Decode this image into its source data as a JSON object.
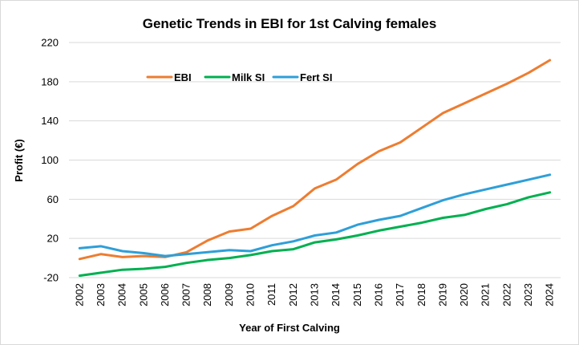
{
  "chart_data": {
    "type": "line",
    "title": "Genetic Trends in EBI for 1st Calving females",
    "xlabel": "Year of First Calving",
    "ylabel": "Profit (€)",
    "ylim": [
      -20,
      220
    ],
    "yticks": [
      -20,
      20,
      60,
      100,
      140,
      180,
      220
    ],
    "grid": true,
    "legend_position": "top-left",
    "categories": [
      "2002",
      "2003",
      "2004",
      "2005",
      "2006",
      "2007",
      "2008",
      "2009",
      "2010",
      "2011",
      "2012",
      "2013",
      "2014",
      "2015",
      "2016",
      "2017",
      "2018",
      "2019",
      "2020",
      "2021",
      "2022",
      "2023",
      "2024"
    ],
    "series": [
      {
        "name": "EBI",
        "color": "#ED7D31",
        "values": [
          -1,
          4,
          1,
          2,
          1,
          6,
          18,
          27,
          30,
          43,
          53,
          71,
          80,
          96,
          109,
          118,
          133,
          148,
          158,
          168,
          178,
          189,
          202
        ]
      },
      {
        "name": "Milk SI",
        "color": "#00B050",
        "values": [
          -18,
          -15,
          -12,
          -11,
          -9,
          -5,
          -2,
          0,
          3,
          7,
          9,
          16,
          19,
          23,
          28,
          32,
          36,
          41,
          44,
          50,
          55,
          62,
          67
        ]
      },
      {
        "name": "Fert SI",
        "color": "#2E9FD8",
        "values": [
          10,
          12,
          7,
          5,
          2,
          4,
          6,
          8,
          7,
          13,
          17,
          23,
          26,
          34,
          39,
          43,
          51,
          59,
          65,
          70,
          75,
          80,
          85
        ]
      }
    ]
  }
}
